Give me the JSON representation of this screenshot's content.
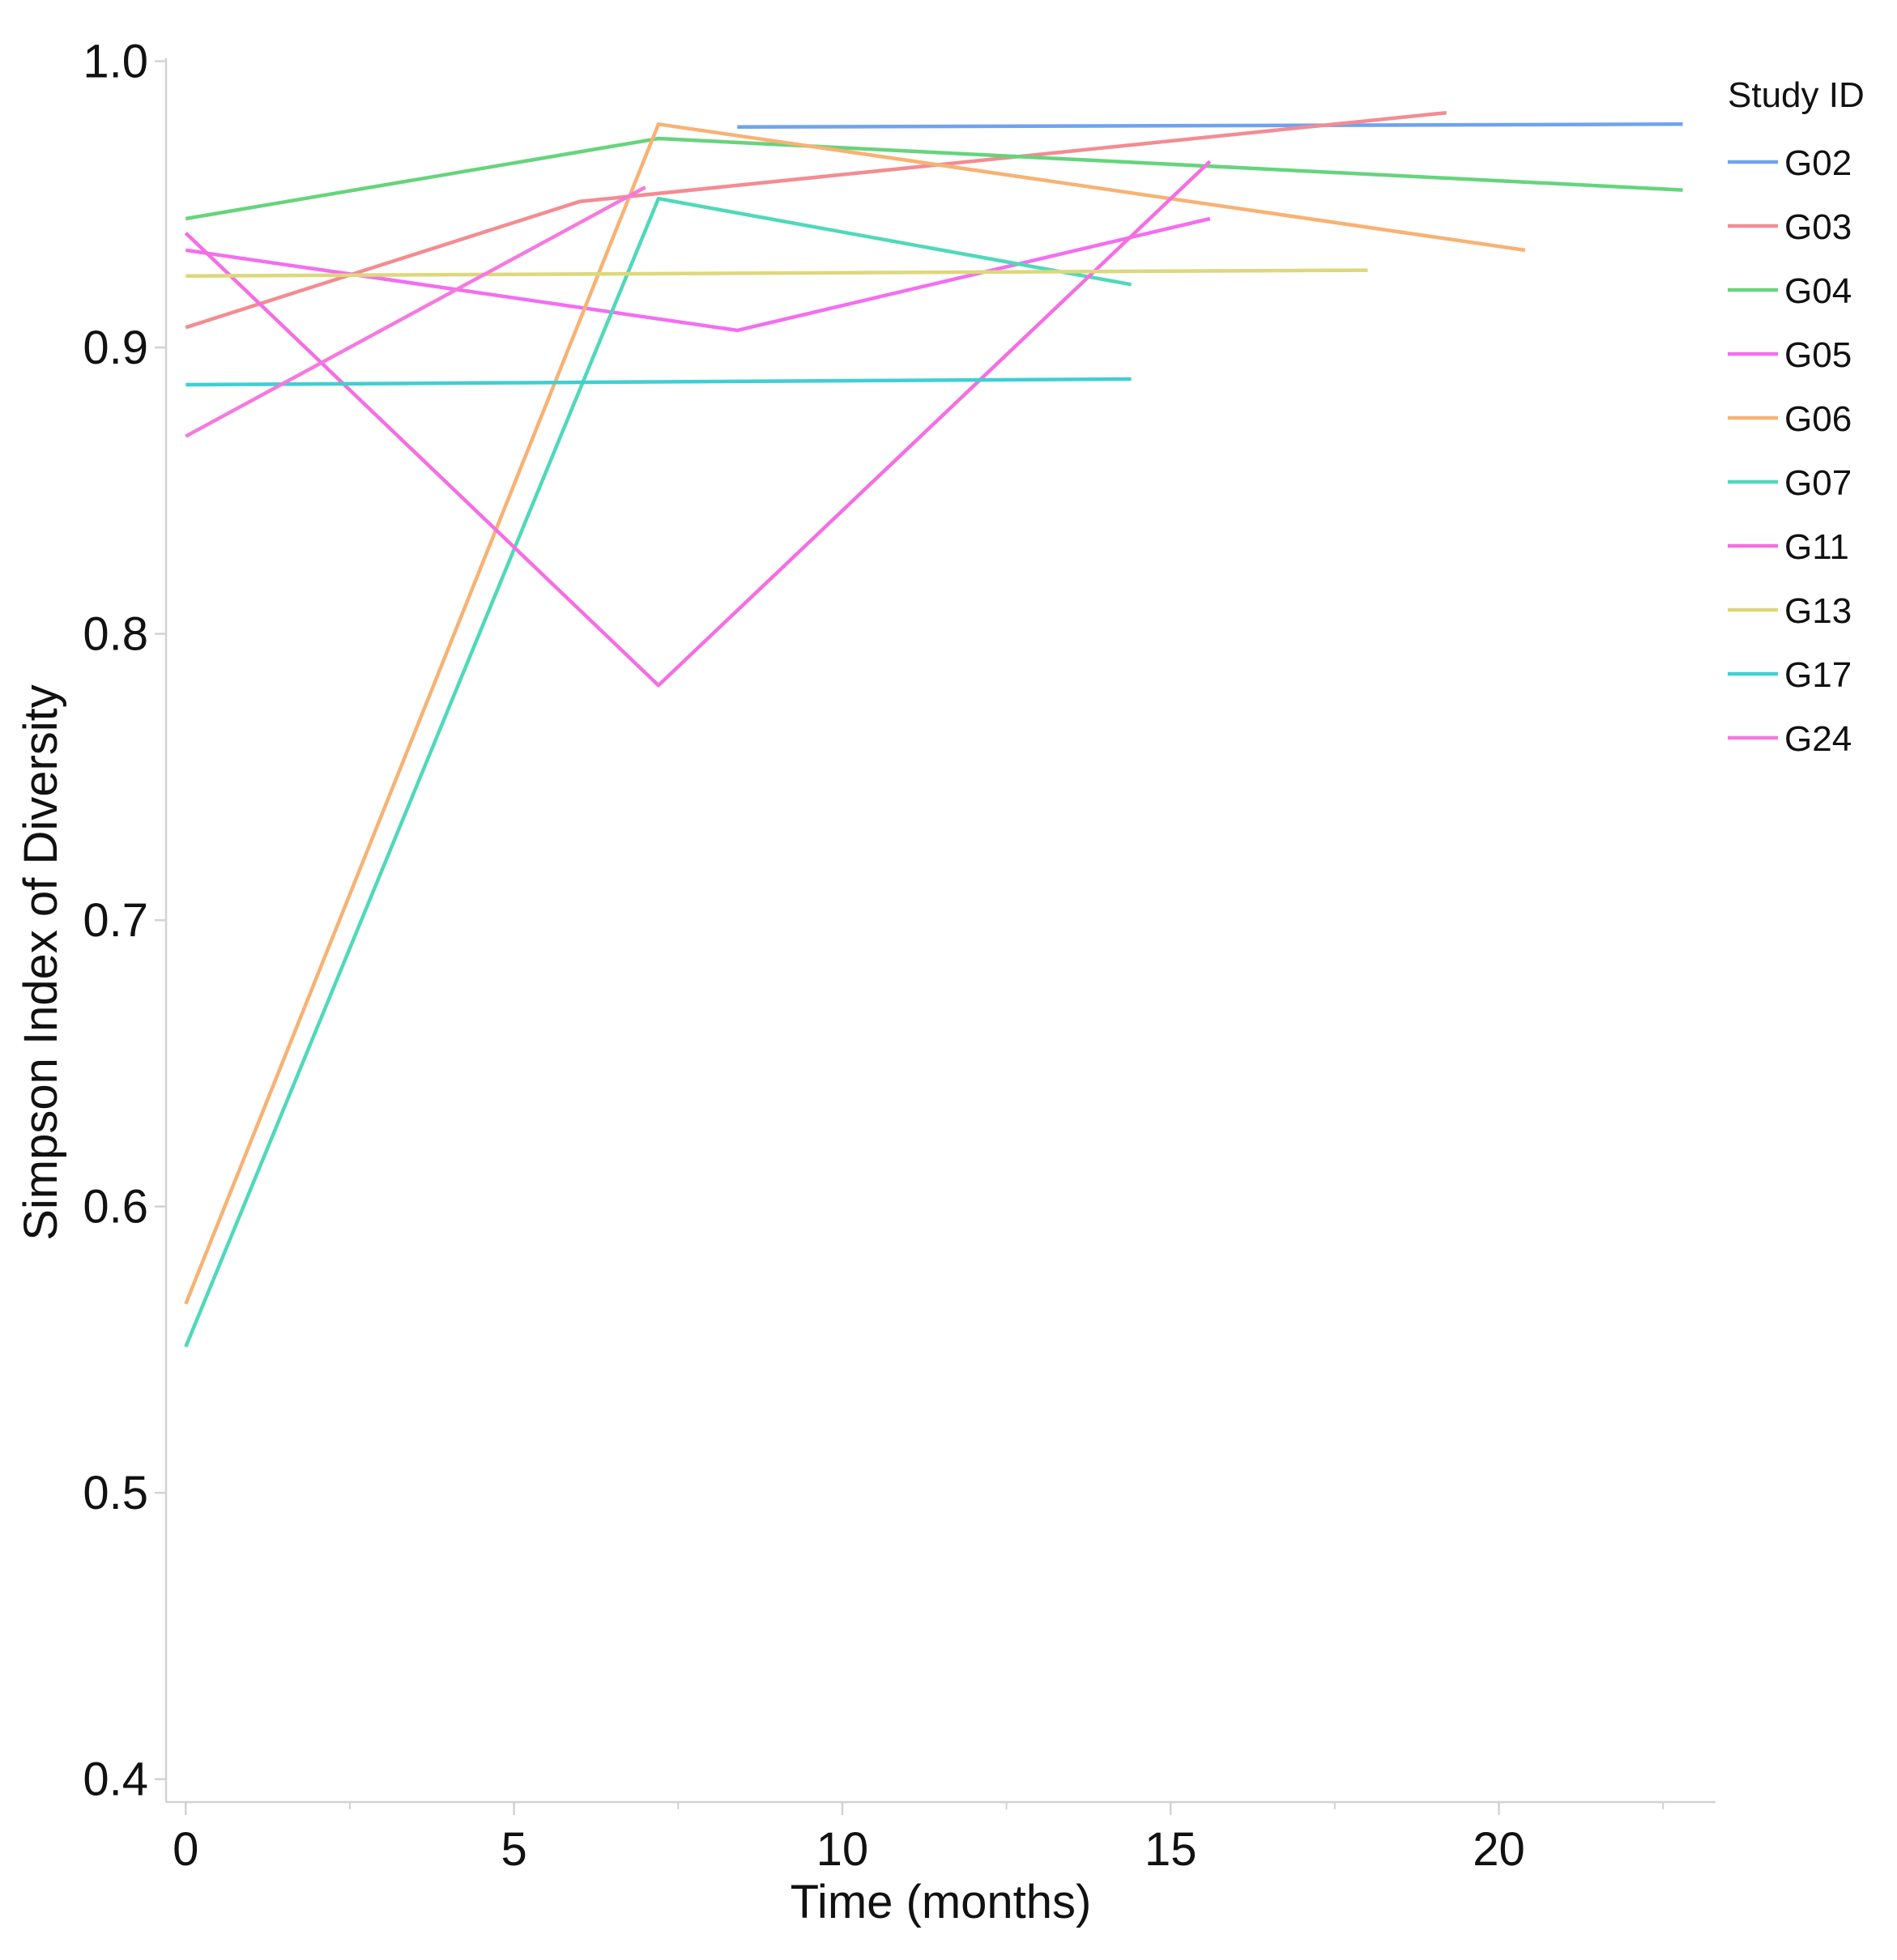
{
  "chart_data": {
    "type": "line",
    "title": "",
    "xlabel": "Time (months)",
    "ylabel": "Simpson Index of Diversity",
    "xlim": [
      -0.3,
      23.3
    ],
    "ylim": [
      0.392,
      1.001
    ],
    "xticks": [
      0,
      5,
      10,
      15,
      20
    ],
    "xtick_labels": [
      "0",
      "5",
      "10",
      "15",
      "20"
    ],
    "x_minor_ticks": [
      2.5,
      7.5,
      12.5,
      17.5,
      22.5
    ],
    "yticks": [
      0.4,
      0.5,
      0.6,
      0.7,
      0.8,
      0.9,
      1.0
    ],
    "ytick_labels": [
      "0.4",
      "0.5",
      "0.6",
      "0.7",
      "0.8",
      "0.9",
      "1.0"
    ],
    "grid": false,
    "legend": {
      "title": "Study ID",
      "position": "right"
    },
    "series": [
      {
        "name": "G02",
        "color": "#6fa3f0",
        "points": [
          [
            8.4,
            0.977
          ],
          [
            22.8,
            0.978
          ]
        ]
      },
      {
        "name": "G03",
        "color": "#f38c92",
        "points": [
          [
            0,
            0.907
          ],
          [
            6.0,
            0.951
          ],
          [
            19.2,
            0.982
          ]
        ]
      },
      {
        "name": "G04",
        "color": "#66d47d",
        "points": [
          [
            0,
            0.945
          ],
          [
            7.2,
            0.973
          ],
          [
            22.8,
            0.955
          ]
        ]
      },
      {
        "name": "G05",
        "color": "#f36ef0",
        "points": [
          [
            0,
            0.934
          ],
          [
            8.4,
            0.906
          ],
          [
            15.6,
            0.945
          ]
        ]
      },
      {
        "name": "G06",
        "color": "#f7b273",
        "points": [
          [
            0,
            0.566
          ],
          [
            7.2,
            0.978
          ],
          [
            20.4,
            0.934
          ]
        ]
      },
      {
        "name": "G07",
        "color": "#4fd9ba",
        "points": [
          [
            0,
            0.551
          ],
          [
            7.2,
            0.952
          ],
          [
            14.4,
            0.922
          ]
        ]
      },
      {
        "name": "G11",
        "color": "#f56ee2",
        "points": [
          [
            0,
            0.94
          ],
          [
            7.2,
            0.782
          ],
          [
            15.6,
            0.965
          ]
        ]
      },
      {
        "name": "G13",
        "color": "#dcd87c",
        "points": [
          [
            0,
            0.925
          ],
          [
            18.0,
            0.927
          ]
        ]
      },
      {
        "name": "G17",
        "color": "#3fcfd3",
        "points": [
          [
            0,
            0.887
          ],
          [
            14.4,
            0.889
          ]
        ]
      },
      {
        "name": "G24",
        "color": "#f579df",
        "points": [
          [
            0,
            0.869
          ],
          [
            7.0,
            0.956
          ]
        ]
      }
    ]
  }
}
